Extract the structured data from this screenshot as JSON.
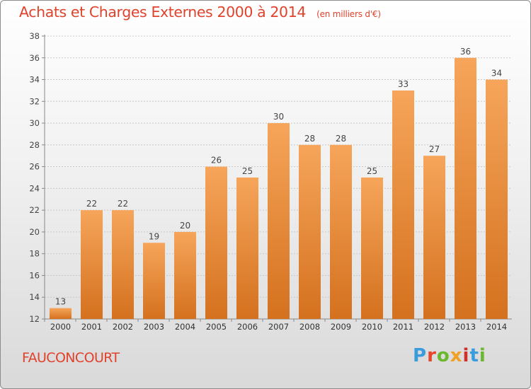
{
  "header": {
    "title": "Achats et Charges Externes 2000 à 2014",
    "subtitle": "(en milliers d'€)"
  },
  "footer": {
    "commune": "FAUCONCOURT",
    "logo_text": "Proxiti"
  },
  "colors": {
    "title": "#e0422c",
    "bar_top": "#f6a55a",
    "bar_bottom": "#d4711e",
    "grid": "#c8c8c8",
    "logo": [
      "#3a9cdc",
      "#e8462a",
      "#6ab82f",
      "#f0a024",
      "#d0302c",
      "#3a9cdc",
      "#6ab82f"
    ]
  },
  "chart_data": {
    "type": "bar",
    "title": "Achats et Charges Externes 2000 à 2014",
    "subtitle": "(en milliers d'€)",
    "categories": [
      "2000",
      "2001",
      "2002",
      "2003",
      "2004",
      "2005",
      "2006",
      "2007",
      "2008",
      "2009",
      "2010",
      "2011",
      "2012",
      "2013",
      "2014"
    ],
    "values": [
      13,
      22,
      22,
      19,
      20,
      26,
      25,
      30,
      28,
      28,
      25,
      33,
      27,
      36,
      34
    ],
    "ylim": [
      12,
      38
    ],
    "yticks": [
      "12",
      "14",
      "16",
      "18",
      "20",
      "22",
      "24",
      "26",
      "28",
      "30",
      "32",
      "34",
      "36",
      "38"
    ],
    "grid": "horizontal dashed",
    "data_labels": true
  }
}
